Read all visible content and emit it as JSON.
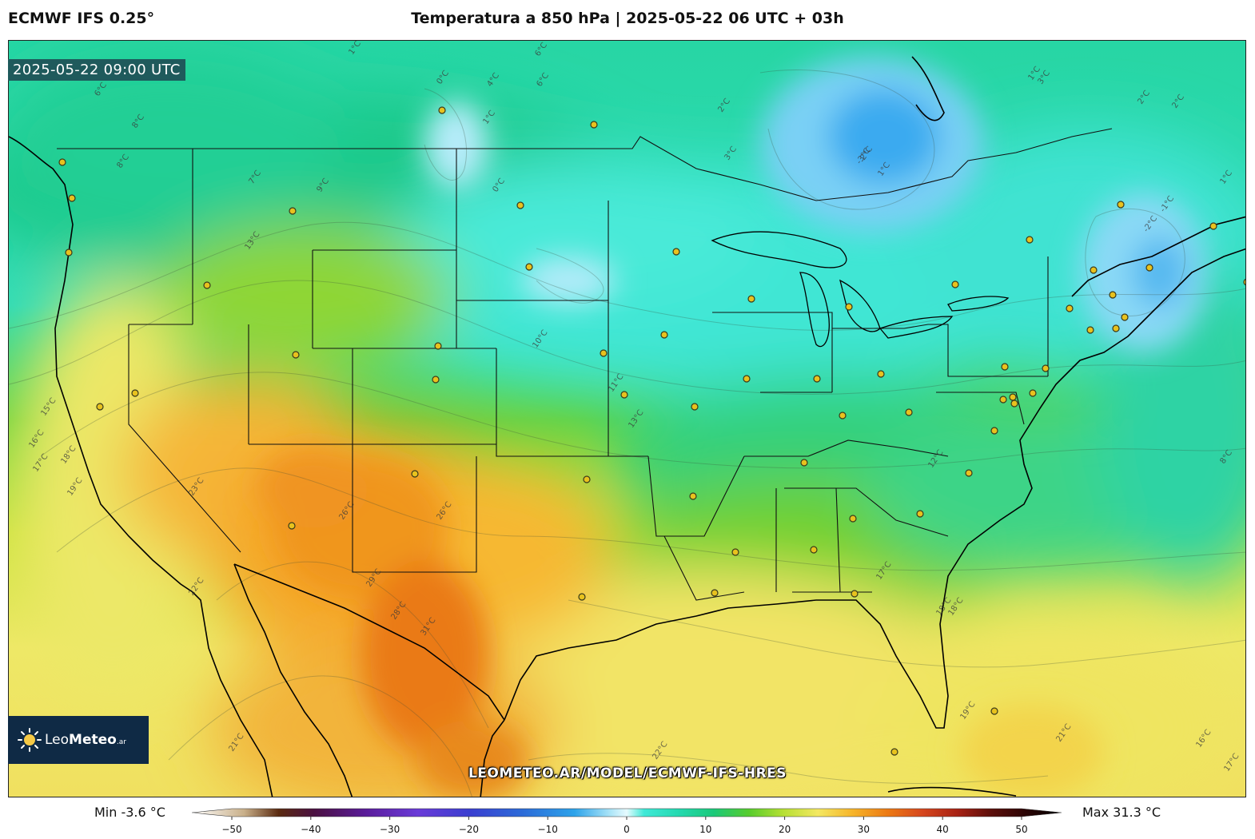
{
  "header": {
    "model_label": "ECMWF IFS 0.25°",
    "title": "Temperatura a 850 hPa | 2025-05-22 06 UTC + 03h"
  },
  "map": {
    "valid_time": "2025-05-22 09:00 UTC",
    "watermark": "LEOMETEO.AR/MODEL/ECMWF-IFS-HRES",
    "logo": {
      "brand": "Leo",
      "brand_bold": "Meteo",
      "suffix": ".ar"
    },
    "isotherm_labels": [
      "1°C",
      "0°C",
      "6°C",
      "4°C",
      "6°C",
      "1°C",
      "2°C",
      "0°C",
      "3°C",
      "2°C",
      "1°C",
      "1°C",
      "2°C",
      "-1°C",
      "-2°C",
      "-3°C",
      "2°C",
      "3°C",
      "1°C",
      "6°C",
      "8°C",
      "8°C",
      "7°C",
      "9°C",
      "13°C",
      "10°C",
      "11°C",
      "13°C",
      "15°C",
      "16°C",
      "17°C",
      "18°C",
      "19°C",
      "22°C",
      "23°C",
      "26°C",
      "29°C",
      "31°C",
      "28°C",
      "26°C",
      "21°C",
      "22°C",
      "17°C",
      "18°C",
      "12°C",
      "18°C",
      "19°C",
      "21°C",
      "16°C",
      "17°C",
      "8°C"
    ]
  },
  "colorbar": {
    "min_label": "Min -3.6 °C",
    "max_label": "Max 31.3 °C",
    "ticks": [
      "−50",
      "−40",
      "−30",
      "−20",
      "−10",
      "0",
      "10",
      "20",
      "30",
      "40",
      "50"
    ],
    "range": [
      -50,
      50
    ],
    "stops": [
      {
        "v": -50,
        "c": "#ffffff"
      },
      {
        "v": -44,
        "c": "#c9b08a"
      },
      {
        "v": -40,
        "c": "#5a2a10"
      },
      {
        "v": -36,
        "c": "#4a1040"
      },
      {
        "v": -30,
        "c": "#5a1c9a"
      },
      {
        "v": -24,
        "c": "#6a3bd8"
      },
      {
        "v": -18,
        "c": "#3a3fd0"
      },
      {
        "v": -12,
        "c": "#2c6bd8"
      },
      {
        "v": -6,
        "c": "#2da3ea"
      },
      {
        "v": -2,
        "c": "#a8e3f7"
      },
      {
        "v": 0,
        "c": "#e6fbff"
      },
      {
        "v": 2,
        "c": "#3fe9d7"
      },
      {
        "v": 6,
        "c": "#24d9b0"
      },
      {
        "v": 10,
        "c": "#1bc97a"
      },
      {
        "v": 14,
        "c": "#56cc2e"
      },
      {
        "v": 18,
        "c": "#b6e034"
      },
      {
        "v": 22,
        "c": "#f4e862"
      },
      {
        "v": 26,
        "c": "#f6b42a"
      },
      {
        "v": 30,
        "c": "#ec7a14"
      },
      {
        "v": 34,
        "c": "#d6471e"
      },
      {
        "v": 38,
        "c": "#a82214"
      },
      {
        "v": 42,
        "c": "#5a0e0a"
      },
      {
        "v": 46,
        "c": "#2a0404"
      },
      {
        "v": 50,
        "c": "#000000"
      }
    ]
  }
}
